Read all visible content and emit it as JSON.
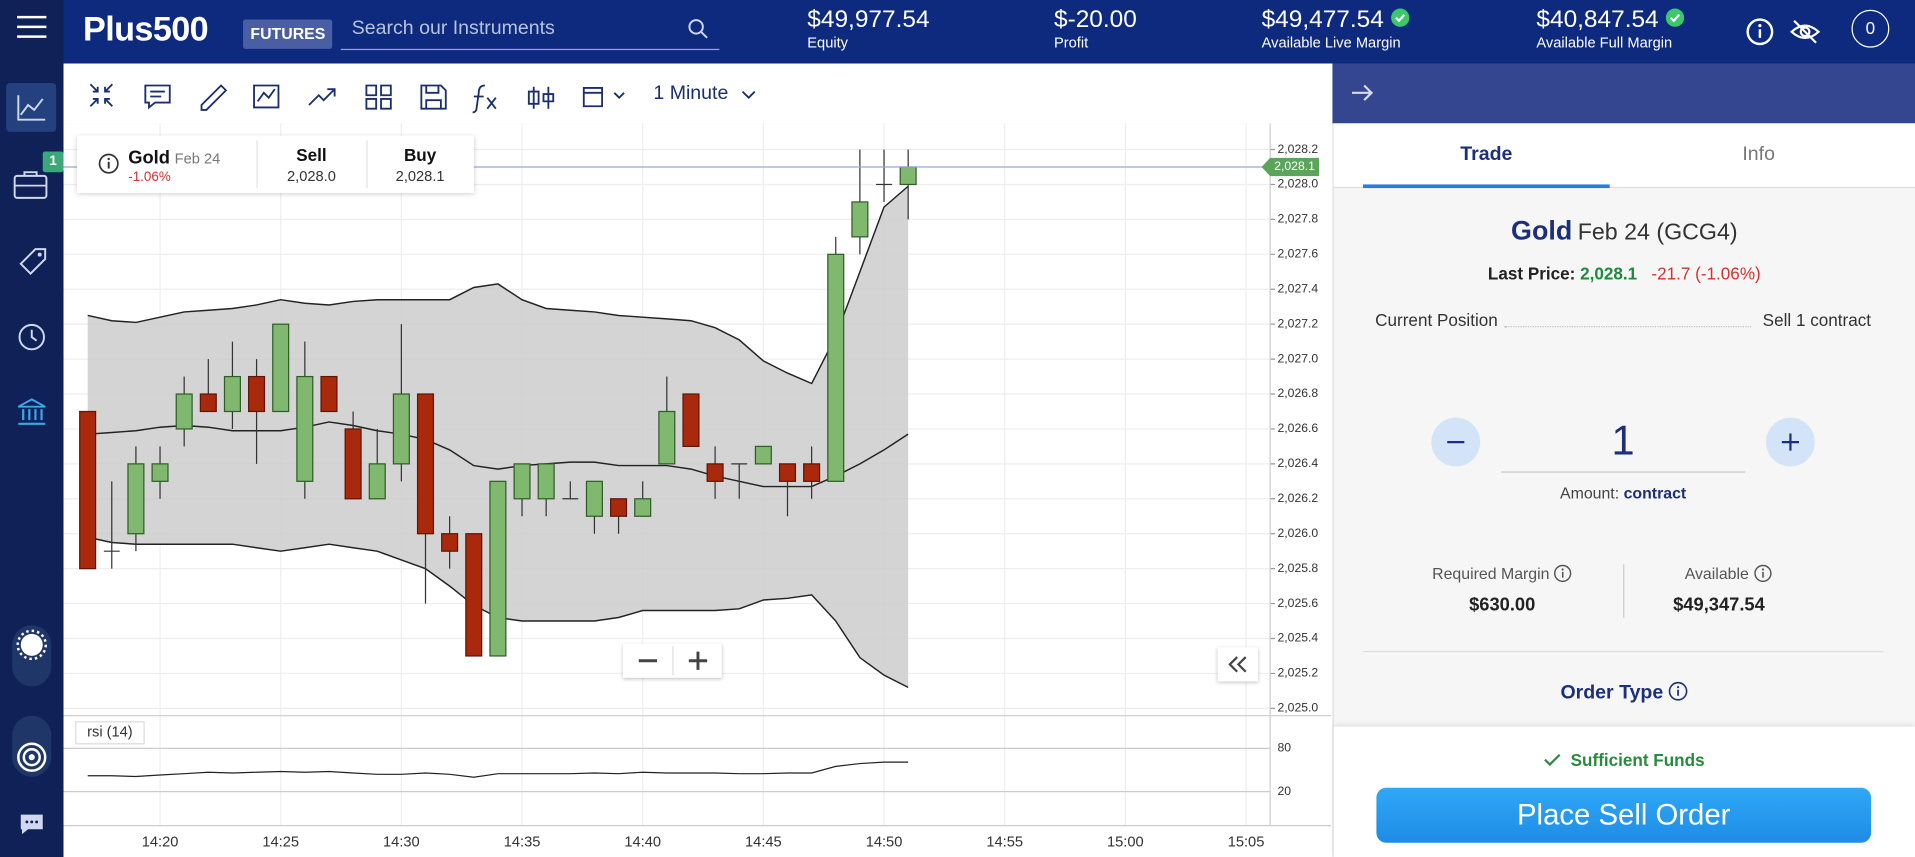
{
  "header": {
    "logo": "Plus500",
    "badge": "FUTURES",
    "search_placeholder": "Search our Instruments",
    "stats": [
      {
        "value": "$49,977.54",
        "label": "Equity"
      },
      {
        "value": "$-20.00",
        "label": "Profit"
      },
      {
        "value": "$49,477.54",
        "label": "Available Live Margin"
      },
      {
        "value": "$40,847.54",
        "label": "Available Full Margin"
      }
    ],
    "notifications": "0"
  },
  "sidebar": {
    "portfolio_badge": "1"
  },
  "toolbar": {
    "timeframe": "1 Minute"
  },
  "instrument_card": {
    "name": "Gold",
    "expiry": "Feb 24",
    "change": "-1.06%",
    "sell_label": "Sell",
    "sell": "2,028.0",
    "buy_label": "Buy",
    "buy": "2,028.1"
  },
  "chart_data": {
    "type": "candlestick",
    "x": [
      "14:17",
      "14:18",
      "14:19",
      "14:20",
      "14:21",
      "14:22",
      "14:23",
      "14:24",
      "14:25",
      "14:26",
      "14:27",
      "14:28",
      "14:29",
      "14:30",
      "14:31",
      "14:32",
      "14:33",
      "14:34",
      "14:35",
      "14:36",
      "14:37",
      "14:38",
      "14:39",
      "14:40",
      "14:41",
      "14:42",
      "14:43",
      "14:44",
      "14:45",
      "14:46",
      "14:47",
      "14:48",
      "14:49",
      "14:50",
      "14:51"
    ],
    "open": [
      2026.7,
      2025.9,
      2026.0,
      2026.3,
      2026.6,
      2026.8,
      2026.7,
      2026.9,
      2026.7,
      2026.3,
      2026.9,
      2026.6,
      2026.2,
      2026.4,
      2026.8,
      2026.0,
      2026.0,
      2025.3,
      2026.2,
      2026.2,
      2026.2,
      2026.1,
      2026.2,
      2026.1,
      2026.4,
      2026.8,
      2026.4,
      2026.4,
      2026.4,
      2026.4,
      2026.4,
      2026.3,
      2027.7,
      2028.0,
      2028.0
    ],
    "high": [
      2026.7,
      2026.3,
      2026.5,
      2026.5,
      2026.9,
      2027.0,
      2027.1,
      2027.0,
      2027.2,
      2027.1,
      2026.9,
      2026.7,
      2026.6,
      2027.2,
      2026.8,
      2026.1,
      2026.0,
      2026.3,
      2026.4,
      2026.4,
      2026.3,
      2026.3,
      2026.2,
      2026.3,
      2026.9,
      2026.8,
      2026.5,
      2026.4,
      2026.5,
      2026.4,
      2026.5,
      2027.7,
      2028.2,
      2028.2,
      2028.2
    ],
    "low": [
      2025.8,
      2025.8,
      2025.9,
      2026.2,
      2026.5,
      2026.7,
      2026.6,
      2026.4,
      2026.7,
      2026.2,
      2026.7,
      2026.2,
      2026.2,
      2026.3,
      2025.6,
      2025.8,
      2025.3,
      2025.3,
      2026.1,
      2026.1,
      2026.2,
      2026.0,
      2026.0,
      2026.1,
      2026.4,
      2026.5,
      2026.2,
      2026.2,
      2026.4,
      2026.1,
      2026.2,
      2026.3,
      2027.6,
      2027.9,
      2027.8
    ],
    "close": [
      2025.8,
      2025.9,
      2026.4,
      2026.4,
      2026.8,
      2026.7,
      2026.9,
      2026.7,
      2027.2,
      2026.9,
      2026.7,
      2026.2,
      2026.4,
      2026.8,
      2026.0,
      2025.9,
      2025.3,
      2026.3,
      2026.4,
      2026.4,
      2026.2,
      2026.3,
      2026.1,
      2026.2,
      2026.7,
      2026.5,
      2026.3,
      2026.4,
      2026.5,
      2026.3,
      2026.3,
      2027.6,
      2027.9,
      2028.0,
      2028.1
    ],
    "up_color": "#80b870",
    "up_border": "#2f5d26",
    "down_color": "#a8290c",
    "down_border": "#5e1607",
    "bollinger": {
      "upper": [
        2027.25,
        2027.22,
        2027.21,
        2027.24,
        2027.27,
        2027.28,
        2027.29,
        2027.31,
        2027.34,
        2027.32,
        2027.31,
        2027.33,
        2027.34,
        2027.34,
        2027.34,
        2027.34,
        2027.41,
        2027.43,
        2027.34,
        2027.29,
        2027.28,
        2027.27,
        2027.25,
        2027.24,
        2027.23,
        2027.22,
        2027.18,
        2027.11,
        2026.99,
        2026.92,
        2026.86,
        2027.13,
        2027.5,
        2027.87,
        2027.99
      ],
      "middle": [
        2026.57,
        2026.58,
        2026.59,
        2026.61,
        2026.62,
        2026.61,
        2026.59,
        2026.59,
        2026.59,
        2026.61,
        2026.64,
        2026.62,
        2026.59,
        2026.57,
        2026.54,
        2026.48,
        2026.39,
        2026.37,
        2026.39,
        2026.4,
        2026.41,
        2026.41,
        2026.39,
        2026.39,
        2026.39,
        2026.37,
        2026.33,
        2026.3,
        2026.27,
        2026.27,
        2026.27,
        2026.33,
        2026.4,
        2026.48,
        2026.57
      ],
      "lower": [
        2025.98,
        2025.95,
        2025.94,
        2025.94,
        2025.94,
        2025.94,
        2025.94,
        2025.92,
        2025.9,
        2025.92,
        2025.94,
        2025.92,
        2025.9,
        2025.85,
        2025.8,
        2025.7,
        2025.59,
        2025.52,
        2025.5,
        2025.5,
        2025.5,
        2025.5,
        2025.52,
        2025.56,
        2025.56,
        2025.56,
        2025.56,
        2025.57,
        2025.62,
        2025.63,
        2025.65,
        2025.5,
        2025.29,
        2025.19,
        2025.12
      ],
      "fill": "#cdcdcd",
      "line_color": "#222222"
    },
    "last_price": {
      "value": 2028.1,
      "label": "2,028.1"
    },
    "last_price_color": "#5aa55a",
    "xlim": [
      "14:16",
      "15:06"
    ],
    "xticks": [
      "14:20",
      "14:25",
      "14:30",
      "14:35",
      "14:40",
      "14:45",
      "14:50",
      "14:55",
      "15:00",
      "15:05"
    ],
    "ylim": [
      2024.965,
      2028.35
    ],
    "yticks": [
      {
        "value": 2025.0,
        "label": "2,025.0"
      },
      {
        "value": 2025.2,
        "label": "2,025.2"
      },
      {
        "value": 2025.4,
        "label": "2,025.4"
      },
      {
        "value": 2025.6,
        "label": "2,025.6"
      },
      {
        "value": 2025.8,
        "label": "2,025.8"
      },
      {
        "value": 2026.0,
        "label": "2,026.0"
      },
      {
        "value": 2026.2,
        "label": "2,026.2"
      },
      {
        "value": 2026.4,
        "label": "2,026.4"
      },
      {
        "value": 2026.6,
        "label": "2,026.6"
      },
      {
        "value": 2026.8,
        "label": "2,026.8"
      },
      {
        "value": 2027.0,
        "label": "2,027.0"
      },
      {
        "value": 2027.2,
        "label": "2,027.2"
      },
      {
        "value": 2027.4,
        "label": "2,027.4"
      },
      {
        "value": 2027.6,
        "label": "2,027.6"
      },
      {
        "value": 2027.8,
        "label": "2,027.8"
      },
      {
        "value": 2028.0,
        "label": "2,028.0"
      },
      {
        "value": 2028.2,
        "label": "2,028.2"
      }
    ],
    "grid": true,
    "rsi": {
      "label": "rsi (14)",
      "values": [
        42,
        42,
        41,
        43,
        45,
        47,
        46,
        47,
        48,
        47,
        48,
        46,
        44,
        44,
        46,
        44,
        40,
        45,
        45,
        45,
        45,
        46,
        45,
        47,
        46,
        46,
        46,
        45,
        45,
        46,
        46,
        55,
        59,
        61,
        61
      ],
      "ylim": [
        0,
        100
      ],
      "yticks": [
        20,
        80
      ],
      "color": "#222222"
    }
  },
  "trade_panel": {
    "tabs": [
      "Trade",
      "Info"
    ],
    "name": "Gold",
    "contract": "Feb 24 (GCG4)",
    "last_price_label": "Last Price:",
    "last_price": "2,028.1",
    "change": "-21.7 (-1.06%)",
    "position_label": "Current Position",
    "position": "Sell 1 contract",
    "amount": "1",
    "amount_label": "Amount:",
    "amount_unit": "contract",
    "required_margin_label": "Required Margin",
    "required_margin": "$630.00",
    "available_label": "Available",
    "available": "$49,347.54",
    "order_type": "Order Type",
    "funds_status": "Sufficient Funds",
    "button": "Place Sell Order"
  }
}
